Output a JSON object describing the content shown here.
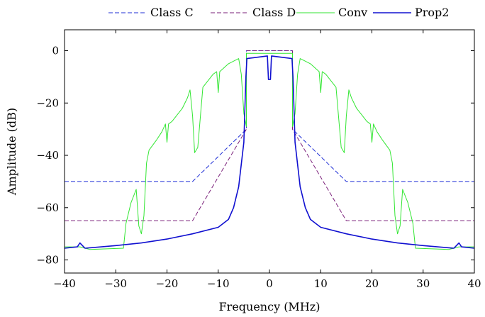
{
  "chart_data": {
    "type": "line",
    "xlabel": "Frequency (MHz)",
    "ylabel": "Amplitude (dB)",
    "xlim": [
      -40,
      40
    ],
    "ylim": [
      -85,
      8
    ],
    "xticks": [
      -40,
      -30,
      -20,
      -10,
      0,
      10,
      20,
      30,
      40
    ],
    "yticks": [
      -80,
      -60,
      -40,
      -20,
      0
    ],
    "xtick_labels": [
      "−40",
      "−30",
      "−20",
      "−10",
      "0",
      "10",
      "20",
      "30",
      "40"
    ],
    "ytick_labels": [
      "−80",
      "−60",
      "−40",
      "−20",
      "0"
    ],
    "grid": false,
    "legend_position": "top-center, outside",
    "series": [
      {
        "name": "Class C",
        "color": "#1f2fd6",
        "style": "dashed",
        "x": [
          -40,
          -15,
          -4.5,
          -4.5,
          4.5,
          4.5,
          15,
          40
        ],
        "y": [
          -50,
          -50,
          -30,
          0,
          0,
          -30,
          -50,
          -50
        ]
      },
      {
        "name": "Class D",
        "color": "#7a1f7a",
        "style": "dashed",
        "x": [
          -40,
          -15,
          -4.5,
          -4.5,
          4.5,
          4.5,
          15,
          40
        ],
        "y": [
          -65,
          -65,
          -30,
          0,
          0,
          -30,
          -65,
          -65
        ]
      },
      {
        "name": "Conv",
        "color": "#33e633",
        "style": "solid",
        "x": [
          -40,
          -37,
          -36,
          -35,
          -28.5,
          -28,
          -27,
          -26,
          -25.5,
          -25,
          -24.5,
          -24,
          -23.5,
          -22,
          -21,
          -20.3,
          -20,
          -19.7,
          -19,
          -17,
          -16,
          -15.5,
          -15,
          -14.6,
          -14,
          -13,
          -11,
          -10.3,
          -10,
          -9.7,
          -8,
          -6,
          -5.5,
          -5,
          -4.5,
          -4.5,
          4.5,
          4.5,
          5,
          5.5,
          6,
          8,
          9.7,
          10,
          10.3,
          11,
          13,
          14,
          14.6,
          15,
          15.5,
          16,
          17,
          19,
          19.7,
          20,
          20.3,
          21,
          22,
          23.5,
          24,
          24.5,
          25,
          25.5,
          26,
          27,
          28,
          28.5,
          35,
          36,
          37,
          40
        ],
        "y": [
          -75,
          -75,
          -75.5,
          -76,
          -75.5,
          -66,
          -58,
          -53,
          -67,
          -70,
          -63,
          -43,
          -38,
          -34,
          -31,
          -28,
          -35,
          -28,
          -27,
          -22,
          -18,
          -15,
          -25,
          -39,
          -37,
          -14,
          -9,
          -8,
          -16,
          -8,
          -5,
          -3,
          -9,
          -24,
          -29,
          -1,
          -1,
          -29,
          -24,
          -9,
          -3,
          -5,
          -8,
          -16,
          -8,
          -9,
          -14,
          -37,
          -39,
          -25,
          -15,
          -18,
          -22,
          -27,
          -28,
          -35,
          -28,
          -31,
          -34,
          -38,
          -43,
          -63,
          -70,
          -67,
          -53,
          -58,
          -66,
          -75.5,
          -76,
          -75.5,
          -75,
          -75
        ]
      },
      {
        "name": "Prop2",
        "color": "#1010d0",
        "style": "solid",
        "x": [
          -40,
          -37.5,
          -37,
          -36.5,
          -36,
          -30,
          -25,
          -20,
          -15,
          -10,
          -8,
          -7,
          -6,
          -5,
          -4.6,
          -4.4,
          -0.4,
          -0.2,
          0.2,
          0.4,
          4.4,
          4.6,
          5,
          6,
          7,
          8,
          10,
          15,
          20,
          25,
          30,
          36,
          36.5,
          37,
          37.5,
          40
        ],
        "y": [
          -75.5,
          -75,
          -73.5,
          -74.5,
          -75.5,
          -74.5,
          -73.5,
          -72,
          -70,
          -67.5,
          -64.5,
          -60,
          -52,
          -35,
          -10,
          -3,
          -2,
          -11,
          -11,
          -2,
          -3,
          -10,
          -35,
          -52,
          -60,
          -64.5,
          -67.5,
          -70,
          -72,
          -73.5,
          -74.5,
          -75.5,
          -74.5,
          -73.5,
          -75,
          -75.5
        ]
      }
    ]
  }
}
